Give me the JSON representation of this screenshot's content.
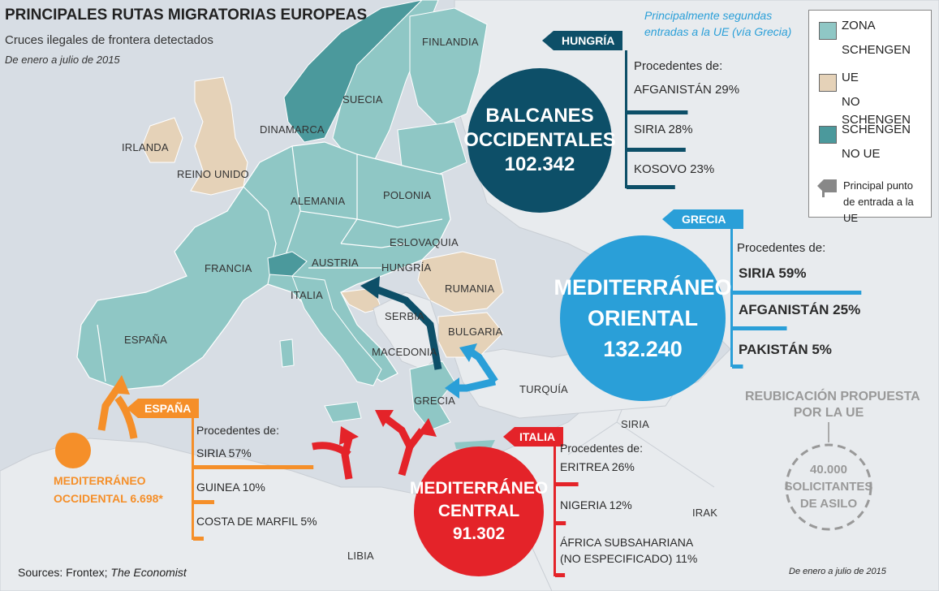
{
  "title": "PRINCIPALES RUTAS MIGRATORIAS EUROPEAS",
  "subtitle": "Cruces ilegales de frontera detectados",
  "period": "De enero a julio de 2015",
  "colors": {
    "schengen": "#8fc7c5",
    "eu_non_schengen": "#e5d2b8",
    "schengen_non_eu": "#4b999c",
    "sea": "#d7dde4",
    "dark_route": "#0d4f68",
    "blue_route": "#2a9fd8",
    "red_route": "#e42329",
    "orange_route": "#f58f29"
  },
  "legend": {
    "schengen": [
      "ZONA",
      "SCHENGEN"
    ],
    "eu_non_schengen": [
      "UE",
      "NO SCHENGEN"
    ],
    "schengen_non_eu": [
      "SCHENGEN",
      "NO UE"
    ],
    "entry_point": [
      "Principal punto",
      "de entrada a la UE"
    ],
    "icons": {
      "entry_point": "flag-arrow-icon"
    }
  },
  "countries": {
    "finlandia": "FINLANDIA",
    "suecia": "SUECIA",
    "dinamarca": "DINAMARCA",
    "irlanda": "IRLANDA",
    "reino_unido": "REINO UNIDO",
    "alemania": "ALEMANIA",
    "polonia": "POLONIA",
    "eslovaquia": "ESLOVAQUIA",
    "francia": "FRANCIA",
    "austria": "AUSTRIA",
    "hungria": "HUNGRÍA",
    "rumania": "RUMANIA",
    "italia": "ITALIA",
    "serbia": "SERBIA",
    "bulgaria": "BULGARIA",
    "macedonia": "MACEDONIA",
    "espana": "ESPAÑA",
    "grecia": "GRECIA",
    "turquia": "TURQUÍA",
    "siria": "SIRIA",
    "irak": "IRAK",
    "libia": "LIBIA"
  },
  "routes": {
    "balcanes": {
      "name": [
        "BALCANES",
        "OCCIDENTALES"
      ],
      "total": "102.342",
      "entry": "HUNGRÍA",
      "note": [
        "Principalmente segundas",
        "entradas a la UE (vía Grecia)"
      ],
      "origins_label": "Procedentes de:",
      "origins": [
        {
          "label": "AFGANISTÁN 29%",
          "pct": 29
        },
        {
          "label": "SIRIA 28%",
          "pct": 28
        },
        {
          "label": "KOSOVO 23%",
          "pct": 23
        }
      ]
    },
    "oriental": {
      "name": [
        "MEDITERRÁNEO",
        "ORIENTAL"
      ],
      "total": "132.240",
      "entry": "GRECIA",
      "origins_label": "Procedentes de:",
      "origins": [
        {
          "label": "SIRIA 59%",
          "pct": 59
        },
        {
          "label": "AFGANISTÁN 25%",
          "pct": 25
        },
        {
          "label": "PAKISTÁN 5%",
          "pct": 5
        }
      ]
    },
    "central": {
      "name": [
        "MEDITERRÁNEO",
        "CENTRAL"
      ],
      "total": "91.302",
      "entry": "ITALIA",
      "origins_label": "Procedentes de:",
      "origins": [
        {
          "label": "ERITREA 26%",
          "pct": 26
        },
        {
          "label": "NIGERIA 12%",
          "pct": 12
        },
        {
          "label": "ÁFRICA SUBSAHARIANA",
          "label2": "(NO ESPECIFICADO) 11%",
          "pct": 11
        }
      ]
    },
    "occidental": {
      "name": [
        "MEDITERRÁNEO",
        "OCCIDENTAL 6.698*"
      ],
      "entry": "ESPAÑA",
      "origins_label": "Procedentes de:",
      "origins": [
        {
          "label": "SIRIA 57%",
          "pct": 57
        },
        {
          "label": "GUINEA 10%",
          "pct": 10
        },
        {
          "label": "COSTA DE MARFIL 5%",
          "pct": 5
        }
      ]
    }
  },
  "relocation": {
    "heading": [
      "REUBICACIÓN PROPUESTA",
      "POR LA UE"
    ],
    "value": [
      "40.000",
      "SOLICITANTES",
      "DE ASILO"
    ]
  },
  "footer": {
    "sources_prefix": "Sources: Frontex; ",
    "sources_italic": "The Economist",
    "note": "De enero a julio de 2015"
  }
}
